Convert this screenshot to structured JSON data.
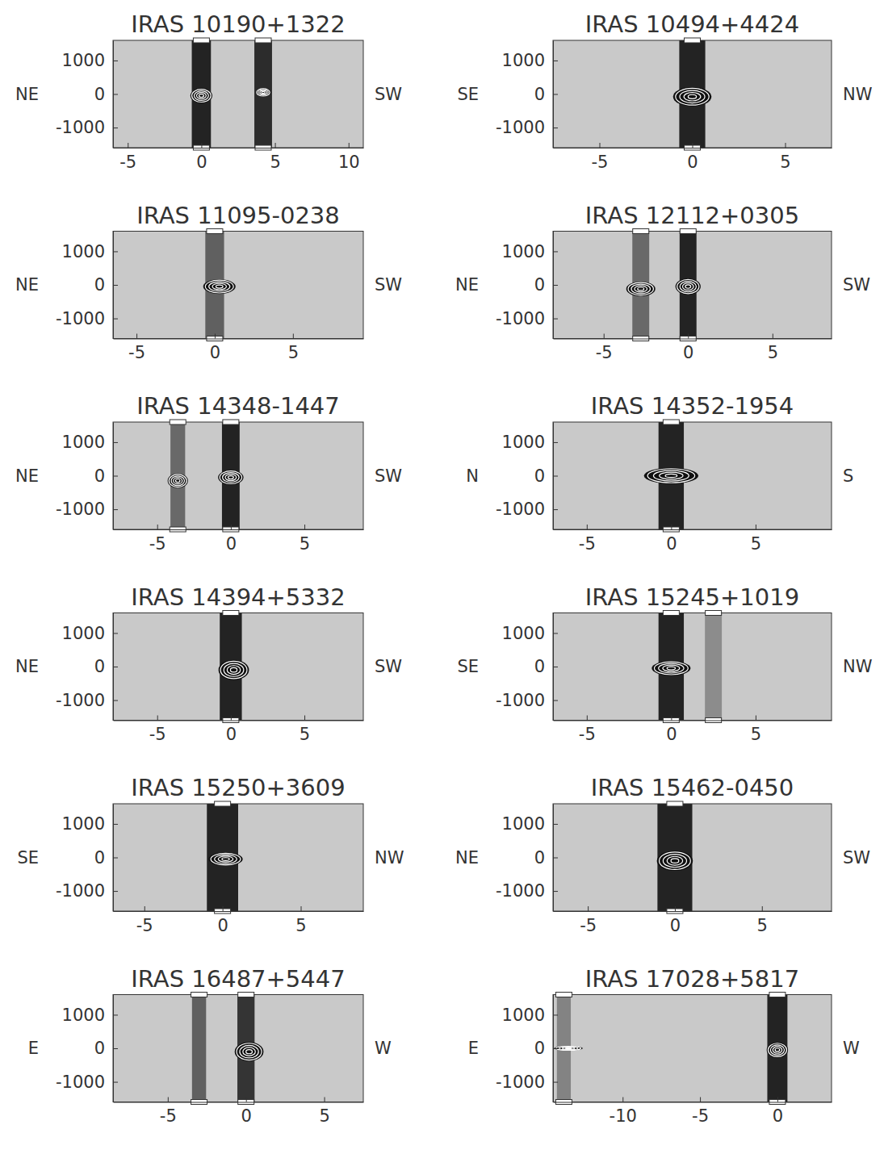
{
  "chart_data": [
    {
      "type": "image",
      "title": "IRAS 10190+1322",
      "left_label": "NE",
      "right_label": "SW",
      "xlim": [
        -6,
        11
      ],
      "ylim": [
        -1600,
        1600
      ],
      "xticks": [
        -5,
        0,
        5,
        10
      ],
      "yticks": [
        -1000,
        0,
        1000
      ],
      "continuum": {
        "x": [
          0,
          4.2
        ],
        "width": [
          1.3,
          1.2
        ],
        "level": [
          0.95,
          0.9
        ]
      },
      "emission": {
        "x": [
          0,
          4.2
        ],
        "y": [
          -50,
          50
        ],
        "width": [
          1.3,
          0.9
        ],
        "height": [
          380,
          220
        ]
      },
      "apertures": [
        0,
        4.2
      ]
    },
    {
      "type": "image",
      "title": "IRAS 10494+4424",
      "left_label": "SE",
      "right_label": "NW",
      "xlim": [
        -7.5,
        7.5
      ],
      "ylim": [
        -1600,
        1600
      ],
      "xticks": [
        -5,
        0,
        5
      ],
      "yticks": [
        -1000,
        0,
        1000
      ],
      "continuum": {
        "x": [
          0
        ],
        "width": [
          1.4
        ],
        "level": [
          0.95
        ]
      },
      "emission": {
        "x": [
          0
        ],
        "y": [
          -80
        ],
        "width": [
          1.8
        ],
        "height": [
          500
        ]
      },
      "apertures": [
        0
      ]
    },
    {
      "type": "image",
      "title": "IRAS 11095-0238",
      "left_label": "NE",
      "right_label": "SW",
      "xlim": [
        -6.5,
        9.5
      ],
      "ylim": [
        -1600,
        1600
      ],
      "xticks": [
        -5,
        0,
        5
      ],
      "yticks": [
        -1000,
        0,
        1000
      ],
      "continuum": {
        "x": [
          0
        ],
        "width": [
          1.2
        ],
        "level": [
          0.6
        ]
      },
      "emission": {
        "x": [
          0.3
        ],
        "y": [
          -50
        ],
        "width": [
          1.8
        ],
        "height": [
          380
        ]
      },
      "apertures": [
        0
      ]
    },
    {
      "type": "image",
      "title": "IRAS 12112+0305",
      "left_label": "NE",
      "right_label": "SW",
      "xlim": [
        -8,
        8.5
      ],
      "ylim": [
        -1600,
        1600
      ],
      "xticks": [
        -5,
        0,
        5
      ],
      "yticks": [
        -1000,
        0,
        1000
      ],
      "continuum": {
        "x": [
          -2.8,
          0
        ],
        "width": [
          1.0,
          1.0
        ],
        "level": [
          0.55,
          0.95
        ]
      },
      "emission": {
        "x": [
          -2.8,
          0
        ],
        "y": [
          -120,
          -50
        ],
        "width": [
          1.5,
          1.3
        ],
        "height": [
          380,
          420
        ]
      },
      "apertures": [
        -2.8,
        0
      ]
    },
    {
      "type": "image",
      "title": "IRAS 14348-1447",
      "left_label": "NE",
      "right_label": "SW",
      "xlim": [
        -8,
        9
      ],
      "ylim": [
        -1600,
        1600
      ],
      "xticks": [
        -5,
        0,
        5
      ],
      "yticks": [
        -1000,
        0,
        1000
      ],
      "continuum": {
        "x": [
          -3.6,
          0
        ],
        "width": [
          1.0,
          1.2
        ],
        "level": [
          0.55,
          0.95
        ]
      },
      "emission": {
        "x": [
          -3.6,
          0
        ],
        "y": [
          -150,
          -50
        ],
        "width": [
          1.2,
          1.5
        ],
        "height": [
          380,
          380
        ]
      },
      "apertures": [
        -3.6,
        0
      ]
    },
    {
      "type": "image",
      "title": "IRAS 14352-1954",
      "left_label": "N",
      "right_label": "S",
      "xlim": [
        -7,
        9.5
      ],
      "ylim": [
        -1600,
        1600
      ],
      "xticks": [
        -5,
        0,
        5
      ],
      "yticks": [
        -1000,
        0,
        1000
      ],
      "continuum": {
        "x": [
          0
        ],
        "width": [
          1.5
        ],
        "level": [
          0.95
        ]
      },
      "emission": {
        "x": [
          0
        ],
        "y": [
          0
        ],
        "width": [
          2.8
        ],
        "height": [
          420
        ]
      },
      "apertures": [
        0
      ]
    },
    {
      "type": "image",
      "title": "IRAS 14394+5332",
      "left_label": "NE",
      "right_label": "SW",
      "xlim": [
        -8,
        9
      ],
      "ylim": [
        -1600,
        1600
      ],
      "xticks": [
        -5,
        0,
        5
      ],
      "yticks": [
        -1000,
        0,
        1000
      ],
      "continuum": {
        "x": [
          0
        ],
        "width": [
          1.5
        ],
        "level": [
          0.95
        ]
      },
      "emission": {
        "x": [
          0.2
        ],
        "y": [
          -100
        ],
        "width": [
          1.8
        ],
        "height": [
          520
        ]
      },
      "apertures": [
        0
      ]
    },
    {
      "type": "image",
      "title": "IRAS 15245+1019",
      "left_label": "SE",
      "right_label": "NW",
      "xlim": [
        -7,
        9.5
      ],
      "ylim": [
        -1600,
        1600
      ],
      "xticks": [
        -5,
        0,
        5
      ],
      "yticks": [
        -1000,
        0,
        1000
      ],
      "continuum": {
        "x": [
          0,
          2.5
        ],
        "width": [
          1.5,
          1.0
        ],
        "level": [
          0.95,
          0.35
        ]
      },
      "emission": {
        "x": [
          0
        ],
        "y": [
          -50
        ],
        "width": [
          2.0
        ],
        "height": [
          380
        ]
      },
      "apertures": [
        0,
        2.5
      ]
    },
    {
      "type": "image",
      "title": "IRAS 15250+3609",
      "left_label": "SE",
      "right_label": "NW",
      "xlim": [
        -7,
        9
      ],
      "ylim": [
        -1600,
        1600
      ],
      "xticks": [
        -5,
        0,
        5
      ],
      "yticks": [
        -1000,
        0,
        1000
      ],
      "continuum": {
        "x": [
          0
        ],
        "width": [
          2.0
        ],
        "level": [
          0.95
        ]
      },
      "emission": {
        "x": [
          0.2
        ],
        "y": [
          -50
        ],
        "width": [
          1.9
        ],
        "height": [
          350
        ]
      },
      "apertures": [
        0
      ]
    },
    {
      "type": "image",
      "title": "IRAS 15462-0450",
      "left_label": "NE",
      "right_label": "SW",
      "xlim": [
        -7,
        9
      ],
      "ylim": [
        -1600,
        1600
      ],
      "xticks": [
        -5,
        0,
        5
      ],
      "yticks": [
        -1000,
        0,
        1000
      ],
      "continuum": {
        "x": [
          0
        ],
        "width": [
          2.0
        ],
        "level": [
          0.95
        ]
      },
      "emission": {
        "x": [
          0
        ],
        "y": [
          -100
        ],
        "width": [
          1.8
        ],
        "height": [
          520
        ]
      },
      "apertures": [
        0
      ]
    },
    {
      "type": "image",
      "title": "IRAS 16487+5447",
      "left_label": "E",
      "right_label": "W",
      "xlim": [
        -8.5,
        7.5
      ],
      "ylim": [
        -1600,
        1600
      ],
      "xticks": [
        -5,
        0,
        5
      ],
      "yticks": [
        -1000,
        0,
        1000
      ],
      "continuum": {
        "x": [
          -3,
          0
        ],
        "width": [
          0.9,
          1.1
        ],
        "level": [
          0.6,
          0.85
        ]
      },
      "emission": {
        "x": [
          0.2
        ],
        "y": [
          -100
        ],
        "width": [
          1.6
        ],
        "height": [
          500
        ]
      },
      "apertures": [
        -3,
        0
      ]
    },
    {
      "type": "image",
      "title": "IRAS 17028+5817",
      "left_label": "E",
      "right_label": "W",
      "xlim": [
        -14.5,
        3.5
      ],
      "ylim": [
        -1600,
        1600
      ],
      "xticks": [
        -10,
        -5,
        0
      ],
      "yticks": [
        -1000,
        0,
        1000
      ],
      "continuum": {
        "x": [
          -13.8,
          0
        ],
        "width": [
          0.9,
          1.3
        ],
        "level": [
          0.4,
          0.95
        ]
      },
      "emission": {
        "x": [
          -13.5,
          0
        ],
        "y": [
          0,
          -50
        ],
        "width": [
          1.6,
          1.2
        ],
        "height": [
          120,
          400
        ]
      },
      "apertures": [
        -13.8,
        0
      ]
    }
  ]
}
